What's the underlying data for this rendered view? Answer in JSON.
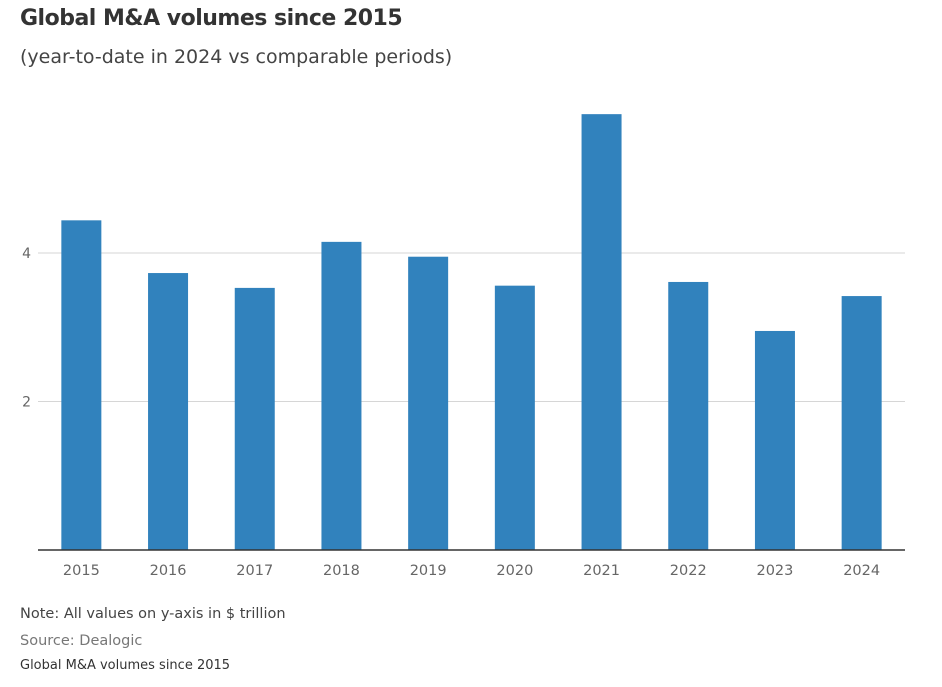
{
  "chart_data": {
    "type": "bar",
    "title": "Global M&A volumes since 2015",
    "subtitle": "(year-to-date in 2024 vs comparable periods)",
    "categories": [
      "2015",
      "2016",
      "2017",
      "2018",
      "2019",
      "2020",
      "2021",
      "2022",
      "2023",
      "2024"
    ],
    "values": [
      4.44,
      3.73,
      3.53,
      4.15,
      3.95,
      3.56,
      5.87,
      3.61,
      2.95,
      3.42
    ],
    "yticks": [
      2,
      4
    ],
    "ylim": [
      0,
      6
    ],
    "grid": true,
    "bar_color": "#3182bd",
    "xlabel": "",
    "ylabel": ""
  },
  "note": "Note: All values on y-axis in $ trillion",
  "source": "Source: Dealogic",
  "caption": "Global M&A volumes since 2015"
}
